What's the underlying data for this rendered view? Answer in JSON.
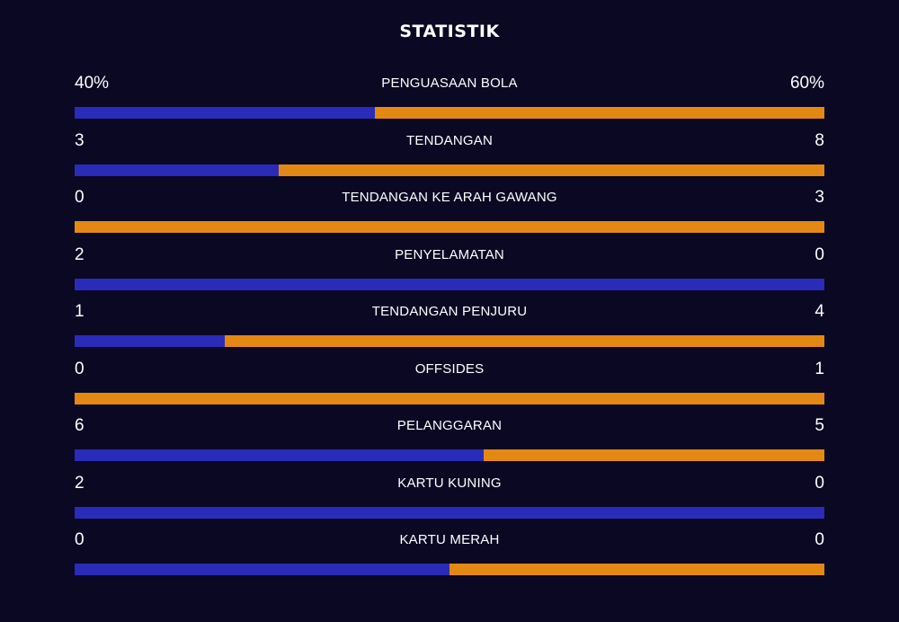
{
  "title": "STATISTIK",
  "colors": {
    "background": "#0a0823",
    "left_team": "#2a2bb8",
    "right_team": "#e48814",
    "text": "#ffffff"
  },
  "stats": [
    {
      "label": "PENGUASAAN BOLA",
      "left": "40%",
      "right": "60%",
      "left_value": 40,
      "right_value": 60
    },
    {
      "label": "TENDANGAN",
      "left": "3",
      "right": "8",
      "left_value": 3,
      "right_value": 8
    },
    {
      "label": "TENDANGAN KE ARAH GAWANG",
      "left": "0",
      "right": "3",
      "left_value": 0,
      "right_value": 3
    },
    {
      "label": "PENYELAMATAN",
      "left": "2",
      "right": "0",
      "left_value": 2,
      "right_value": 0
    },
    {
      "label": "TENDANGAN PENJURU",
      "left": "1",
      "right": "4",
      "left_value": 1,
      "right_value": 4
    },
    {
      "label": "OFFSIDES",
      "left": "0",
      "right": "1",
      "left_value": 0,
      "right_value": 1
    },
    {
      "label": "PELANGGARAN",
      "left": "6",
      "right": "5",
      "left_value": 6,
      "right_value": 5
    },
    {
      "label": "KARTU KUNING",
      "left": "2",
      "right": "0",
      "left_value": 2,
      "right_value": 0
    },
    {
      "label": "KARTU MERAH",
      "left": "0",
      "right": "0",
      "left_value": 0,
      "right_value": 0
    }
  ]
}
